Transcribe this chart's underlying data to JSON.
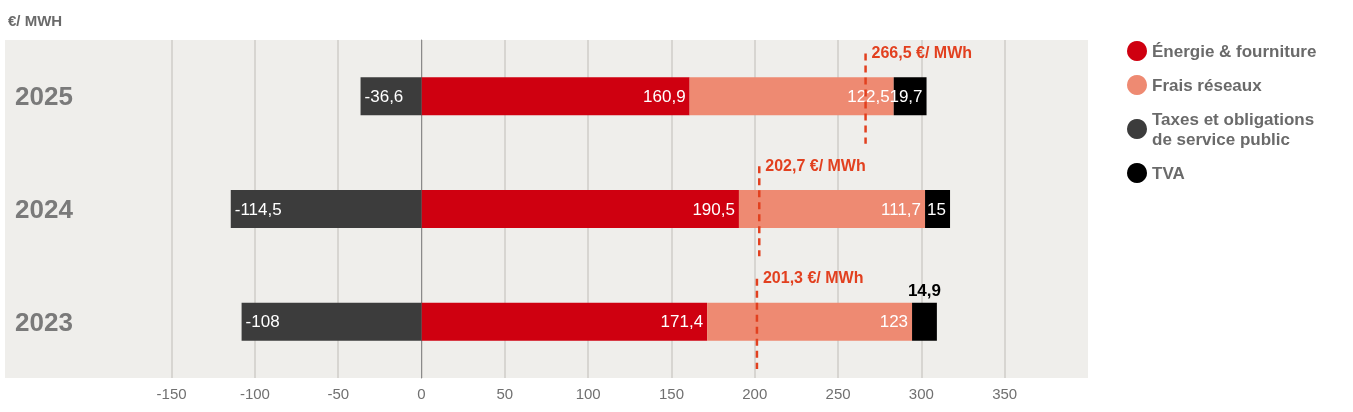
{
  "chart_data": {
    "type": "bar",
    "orientation": "horizontal",
    "stacked": true,
    "title": "€/ MWH",
    "categories": [
      "2025",
      "2024",
      "2023"
    ],
    "series": [
      {
        "name": "Énergie & fourniture",
        "color": "#cf0010",
        "values": [
          160.9,
          190.5,
          171.4
        ],
        "value_labels": [
          "160,9",
          "190,5",
          "171,4"
        ]
      },
      {
        "name": "Frais réseaux",
        "color": "#ee8a72",
        "values": [
          122.5,
          111.7,
          123
        ],
        "value_labels": [
          "122,5",
          "111,7",
          "123"
        ]
      },
      {
        "name": "Taxes et obligations\nde service public",
        "color": "#3c3c3c",
        "values": [
          -36.6,
          -114.5,
          -108
        ],
        "value_labels": [
          "-36,6",
          "-114,5",
          "-108"
        ]
      },
      {
        "name": "TVA",
        "color": "#000000",
        "values": [
          19.7,
          15,
          14.9
        ],
        "value_labels": [
          "19,7",
          "15",
          "14,9"
        ]
      }
    ],
    "xlim": [
      -250,
      400
    ],
    "xticks": [
      -150,
      -100,
      -50,
      0,
      50,
      100,
      150,
      200,
      250,
      300,
      350
    ],
    "grid": "x",
    "legend": "right",
    "ref_lines": [
      {
        "axis": "x",
        "value": 266.5,
        "label": "266,5 €/ MWh",
        "color": "#e2401f",
        "line_style": "dashed"
      },
      {
        "axis": "x",
        "value": 202.7,
        "label": "202,7 €/ MWh",
        "color": "#e2401f",
        "line_style": "dashed"
      },
      {
        "axis": "x",
        "value": 201.3,
        "label": "201,3 €/ MWh",
        "color": "#e2401f",
        "line_style": "dashed"
      }
    ]
  }
}
